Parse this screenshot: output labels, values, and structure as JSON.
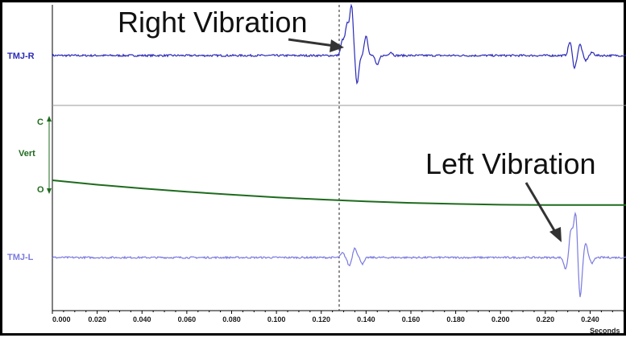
{
  "chart_data": {
    "type": "line",
    "xlabel": "Seconds",
    "xlim": [
      0,
      0.256
    ],
    "x_ticks": [
      "0.000",
      "0.020",
      "0.040",
      "0.060",
      "0.080",
      "0.100",
      "0.120",
      "0.140",
      "0.160",
      "0.180",
      "0.200",
      "0.220",
      "0.240"
    ],
    "x_tick_values": [
      0,
      0.02,
      0.04,
      0.06,
      0.08,
      0.1,
      0.12,
      0.14,
      0.16,
      0.18,
      0.2,
      0.22,
      0.24
    ],
    "cursor_x": 0.128,
    "channels": [
      {
        "label": "TMJ-R",
        "color": "#2a2ab8",
        "baseline": 0,
        "events": [
          {
            "t": 0.1295,
            "amp": 0.3,
            "sign": 1
          },
          {
            "t": 0.1315,
            "amp": 0.6,
            "sign": 1
          },
          {
            "t": 0.1335,
            "amp": 1.0,
            "sign": 1
          },
          {
            "t": 0.136,
            "amp": 0.55,
            "sign": -1
          },
          {
            "t": 0.14,
            "amp": 0.4,
            "sign": 1
          },
          {
            "t": 0.145,
            "amp": 0.2,
            "sign": -1
          },
          {
            "t": 0.151,
            "amp": 0.07,
            "sign": 1
          },
          {
            "t": 0.231,
            "amp": 0.28,
            "sign": 1
          },
          {
            "t": 0.233,
            "amp": 0.25,
            "sign": -1
          },
          {
            "t": 0.2355,
            "amp": 0.22,
            "sign": 1
          },
          {
            "t": 0.238,
            "amp": 0.1,
            "sign": -1
          },
          {
            "t": 0.241,
            "amp": 0.06,
            "sign": 1
          }
        ]
      },
      {
        "label": "Vert",
        "color": "#1e6b1e",
        "scale_top": "C",
        "scale_bottom": "O",
        "points": [
          [
            0,
            0.0
          ],
          [
            0.02,
            -0.12
          ],
          [
            0.04,
            -0.22
          ],
          [
            0.06,
            -0.31
          ],
          [
            0.08,
            -0.39
          ],
          [
            0.1,
            -0.46
          ],
          [
            0.12,
            -0.52
          ],
          [
            0.14,
            -0.57
          ],
          [
            0.16,
            -0.61
          ],
          [
            0.18,
            -0.64
          ],
          [
            0.2,
            -0.66
          ],
          [
            0.22,
            -0.67
          ],
          [
            0.256,
            -0.67
          ]
        ]
      },
      {
        "label": "TMJ-L",
        "color": "#7a7ae0",
        "baseline": 0,
        "events": [
          {
            "t": 0.1295,
            "amp": 0.1,
            "sign": 1
          },
          {
            "t": 0.1325,
            "amp": 0.18,
            "sign": -1
          },
          {
            "t": 0.135,
            "amp": 0.22,
            "sign": 1
          },
          {
            "t": 0.1385,
            "amp": 0.14,
            "sign": -1
          },
          {
            "t": 0.229,
            "amp": 0.25,
            "sign": -1
          },
          {
            "t": 0.2315,
            "amp": 0.6,
            "sign": 1
          },
          {
            "t": 0.2335,
            "amp": 1.0,
            "sign": 1
          },
          {
            "t": 0.2355,
            "amp": 0.9,
            "sign": -1
          },
          {
            "t": 0.238,
            "amp": 0.3,
            "sign": 1
          },
          {
            "t": 0.241,
            "amp": 0.12,
            "sign": -1
          }
        ]
      }
    ],
    "annotations": [
      {
        "text": "Right Vibration",
        "points_to_t": 0.128
      },
      {
        "text": "Left Vibration",
        "points_to_t": 0.2325
      }
    ]
  },
  "labels": {
    "tmj_r": "TMJ-R",
    "vert": "Vert",
    "scale_c": "C",
    "scale_o": "O",
    "tmj_l": "TMJ-L",
    "seconds": "Seconds",
    "right_vibration": "Right Vibration",
    "left_vibration": "Left Vibration"
  },
  "colors": {
    "tmj_r": "#2a2ab8",
    "vert": "#1e6b1e",
    "tmj_l": "#7a7ae0",
    "divider": "#9a9a9a",
    "cursor": "#222222"
  }
}
